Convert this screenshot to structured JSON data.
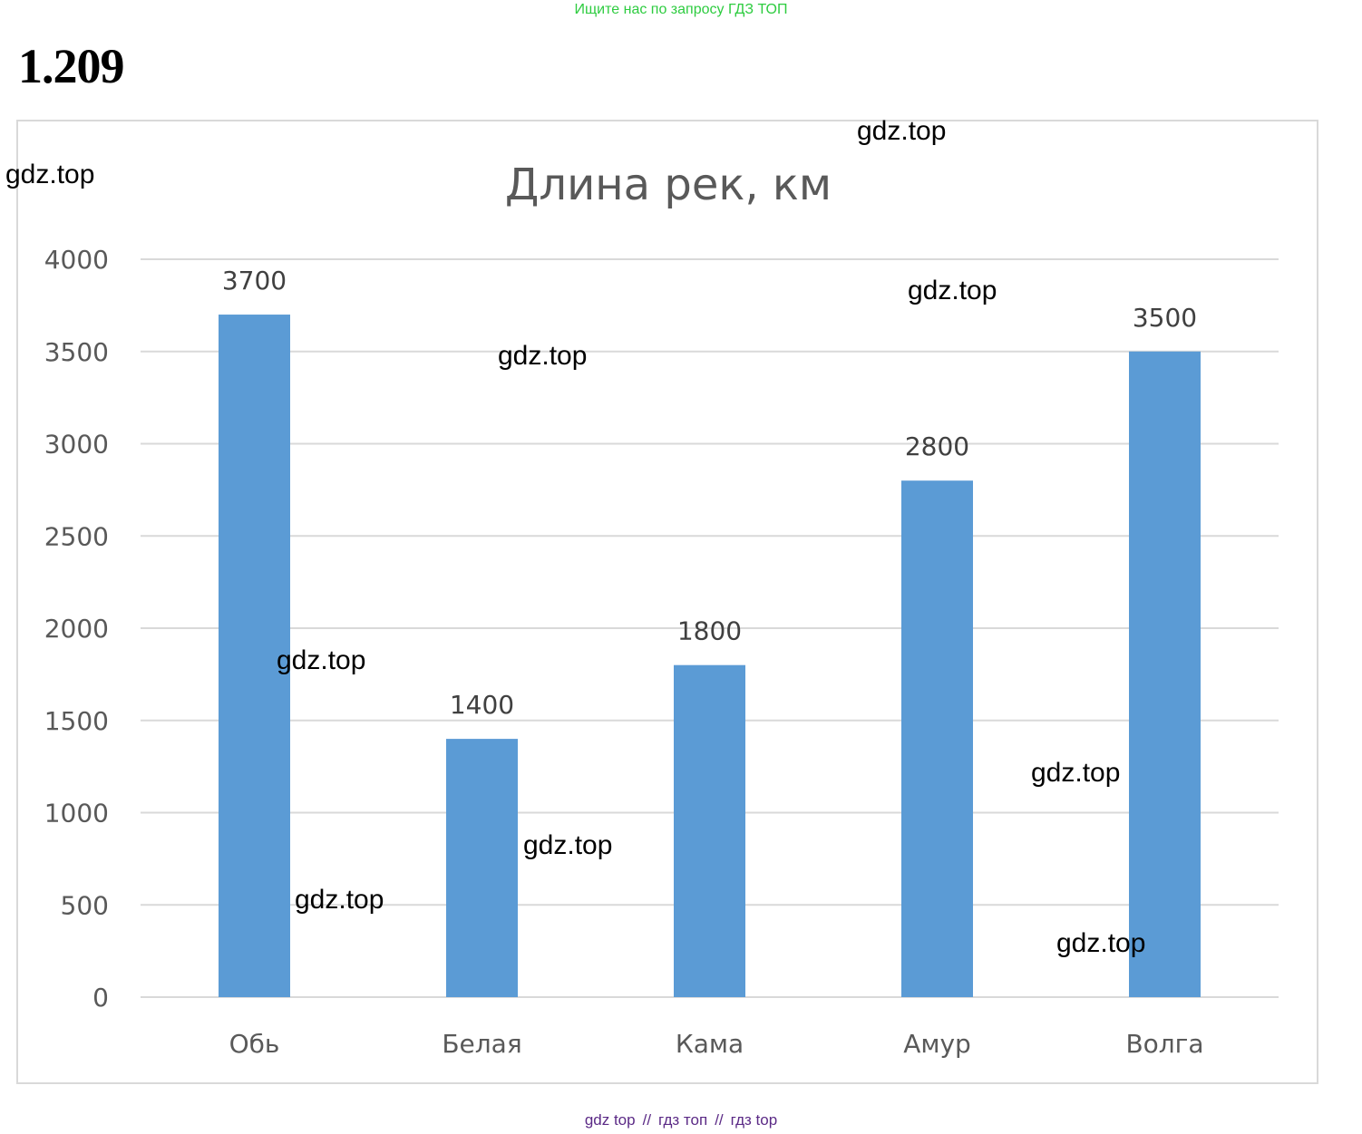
{
  "header": {
    "search_hint": "Ищите нас по запросу ГДЗ ТОП",
    "task_number": "1.209"
  },
  "colors": {
    "bar": "#5b9bd5",
    "gridline": "#d9d9d9",
    "text": "#595959",
    "search_hint": "#2ecc40",
    "footer_links": "#5b2a86"
  },
  "chart_data": {
    "type": "bar",
    "title": "Длина рек, км",
    "categories": [
      "Обь",
      "Белая",
      "Кама",
      "Амур",
      "Волга"
    ],
    "values": [
      3700,
      1400,
      1800,
      2800,
      3500
    ],
    "data_labels": [
      "3700",
      "1400",
      "1800",
      "2800",
      "3500"
    ],
    "y_ticks": [
      0,
      500,
      1000,
      1500,
      2000,
      2500,
      3000,
      3500,
      4000
    ],
    "ylim": [
      0,
      4000
    ],
    "grid": true,
    "legend": "none"
  },
  "watermarks": [
    "gdz.top",
    "gdz.top",
    "gdz.top",
    "gdz.top",
    "gdz.top",
    "gdz.top",
    "gdz.top",
    "gdz.top",
    "gdz.top"
  ],
  "footer": {
    "link_1": "gdz top",
    "link_2": "гдз топ",
    "link_3": "гдз top",
    "separator": "//"
  }
}
